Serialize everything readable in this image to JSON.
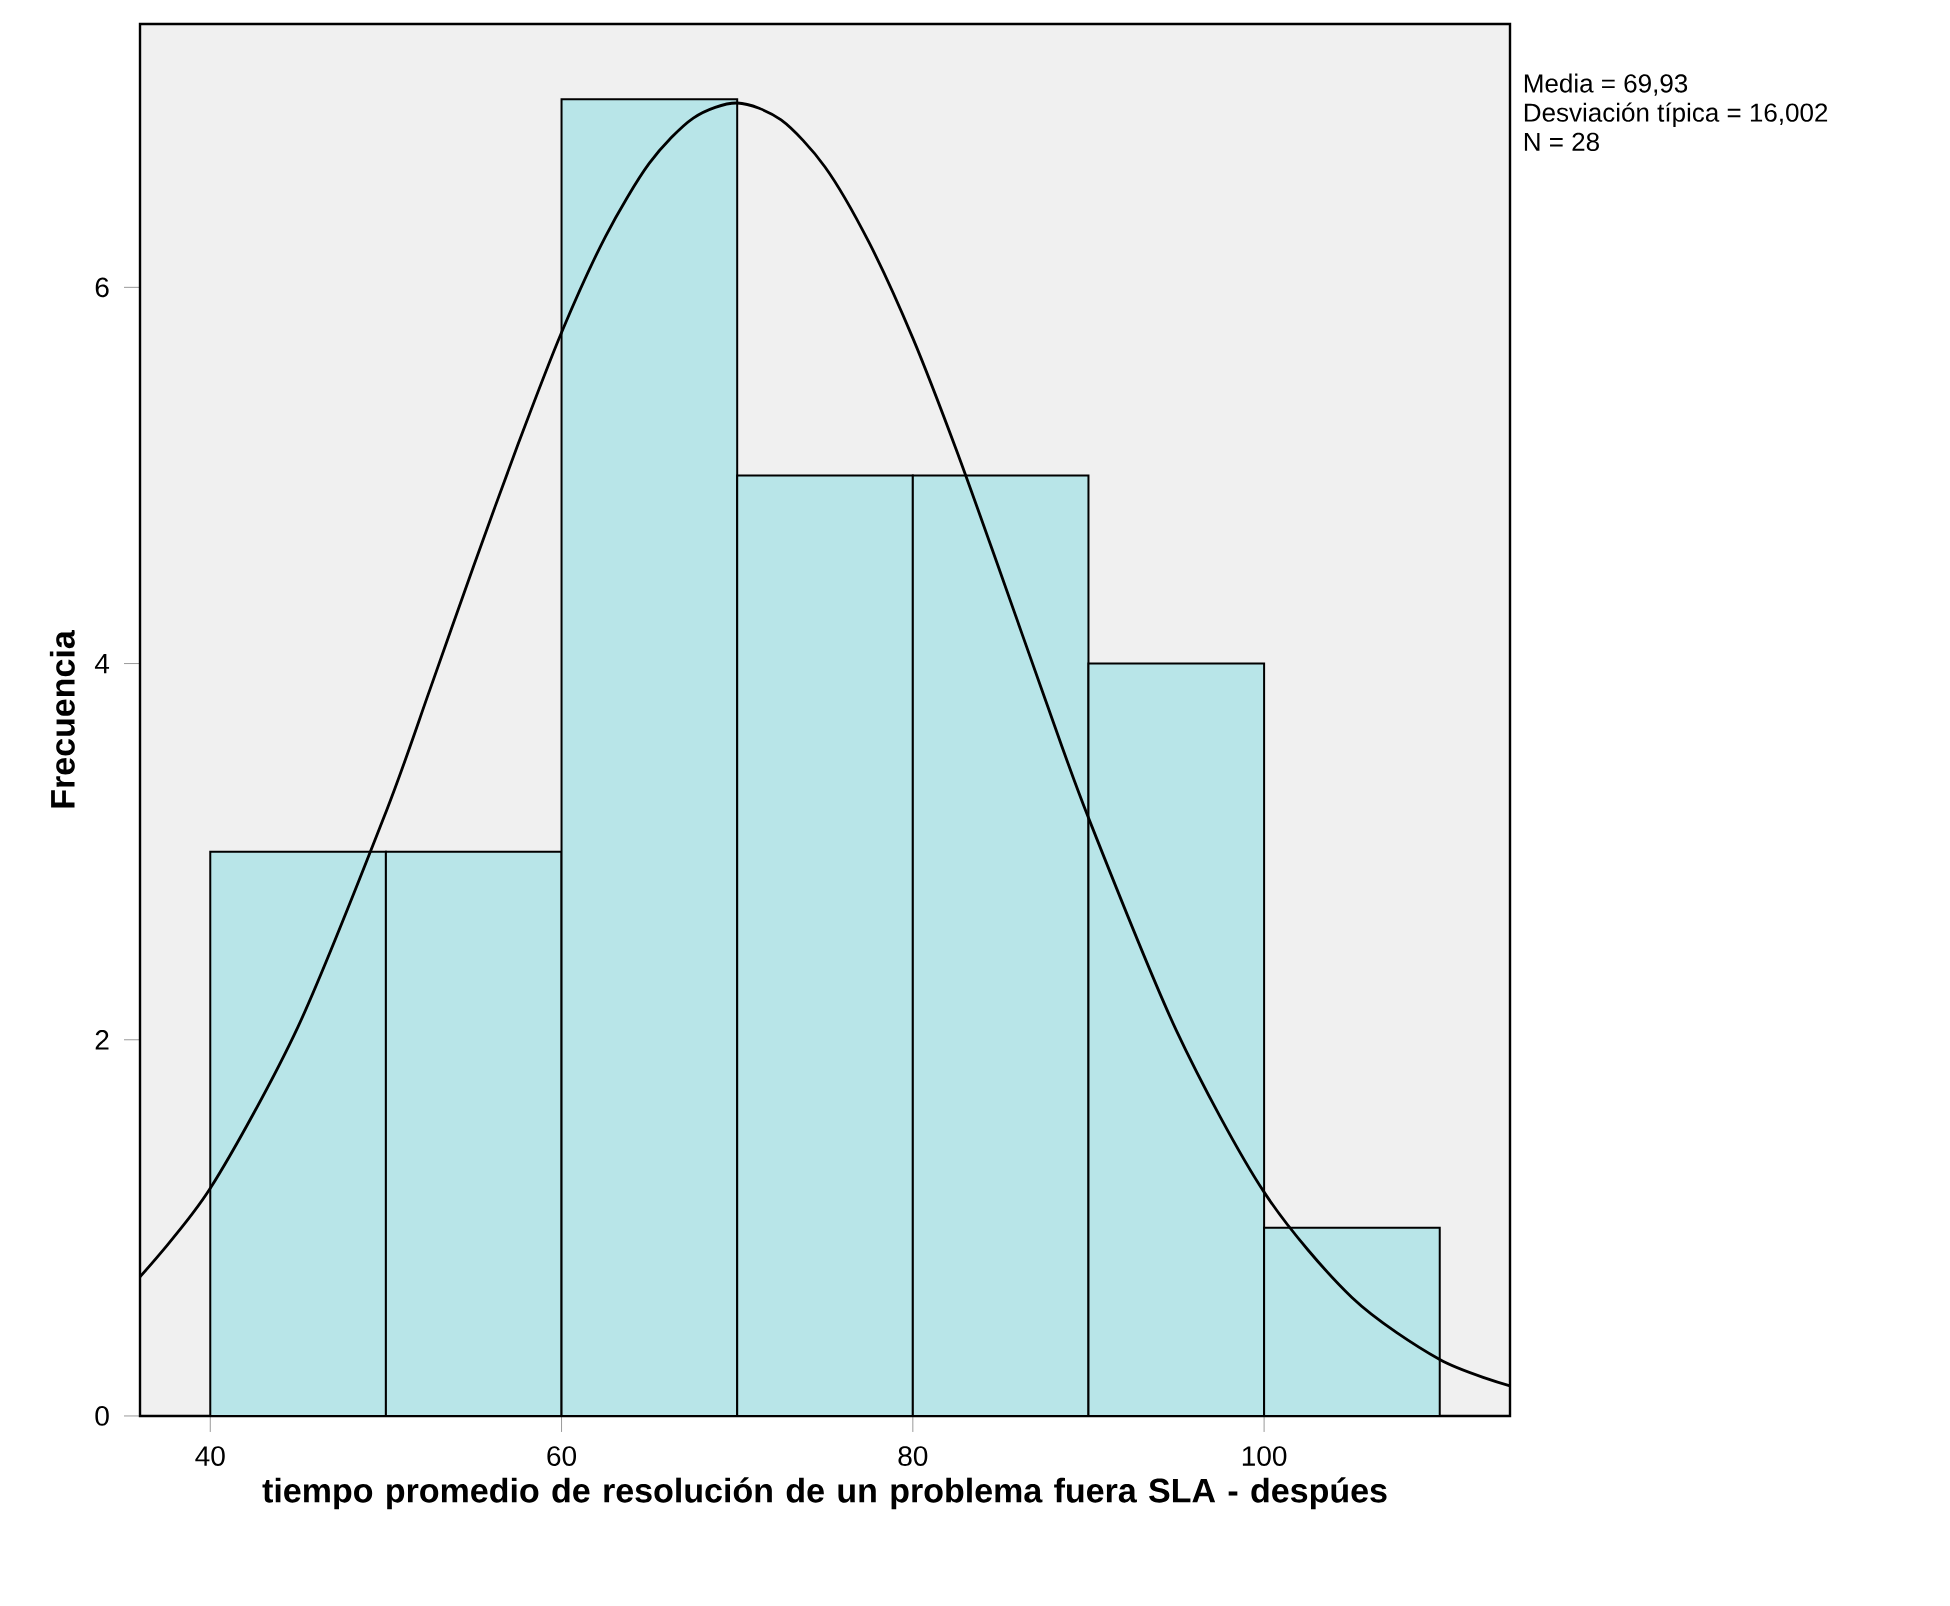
{
  "chart_data": {
    "type": "histogram",
    "xlabel": "tiempo promedio de resolución de un problema fuera SLA - despúes",
    "ylabel": "Frecuencia",
    "annotations": [
      "Media = 69,93",
      "Desviación típica = 16,002",
      "N = 28"
    ],
    "bins": [
      40,
      50,
      60,
      70,
      80,
      90,
      100,
      110
    ],
    "values": [
      3,
      3,
      7,
      5,
      5,
      4,
      1
    ],
    "color": "#b8e5e8",
    "series": [
      {
        "type": "line",
        "color": "#000000",
        "x": [
          36,
          40,
          45,
          50,
          52.5,
          55,
          57.5,
          60,
          62.5,
          65,
          67.5,
          70,
          72.5,
          75,
          77.5,
          80,
          82.5,
          85,
          87.5,
          90,
          95,
          100,
          105,
          110,
          114
        ],
        "values": [
          0.74,
          1.21,
          2.07,
          3.21,
          3.86,
          4.52,
          5.16,
          5.76,
          6.27,
          6.66,
          6.9,
          6.98,
          6.89,
          6.64,
          6.24,
          5.73,
          5.13,
          4.48,
          3.82,
          3.18,
          2.05,
          1.19,
          0.63,
          0.3,
          0.16
        ]
      }
    ],
    "xlim": [
      36,
      114
    ],
    "ylim": [
      0,
      7.4
    ],
    "xticks": [
      40,
      60,
      80,
      100
    ],
    "yticks": [
      0,
      2,
      4,
      6
    ]
  }
}
